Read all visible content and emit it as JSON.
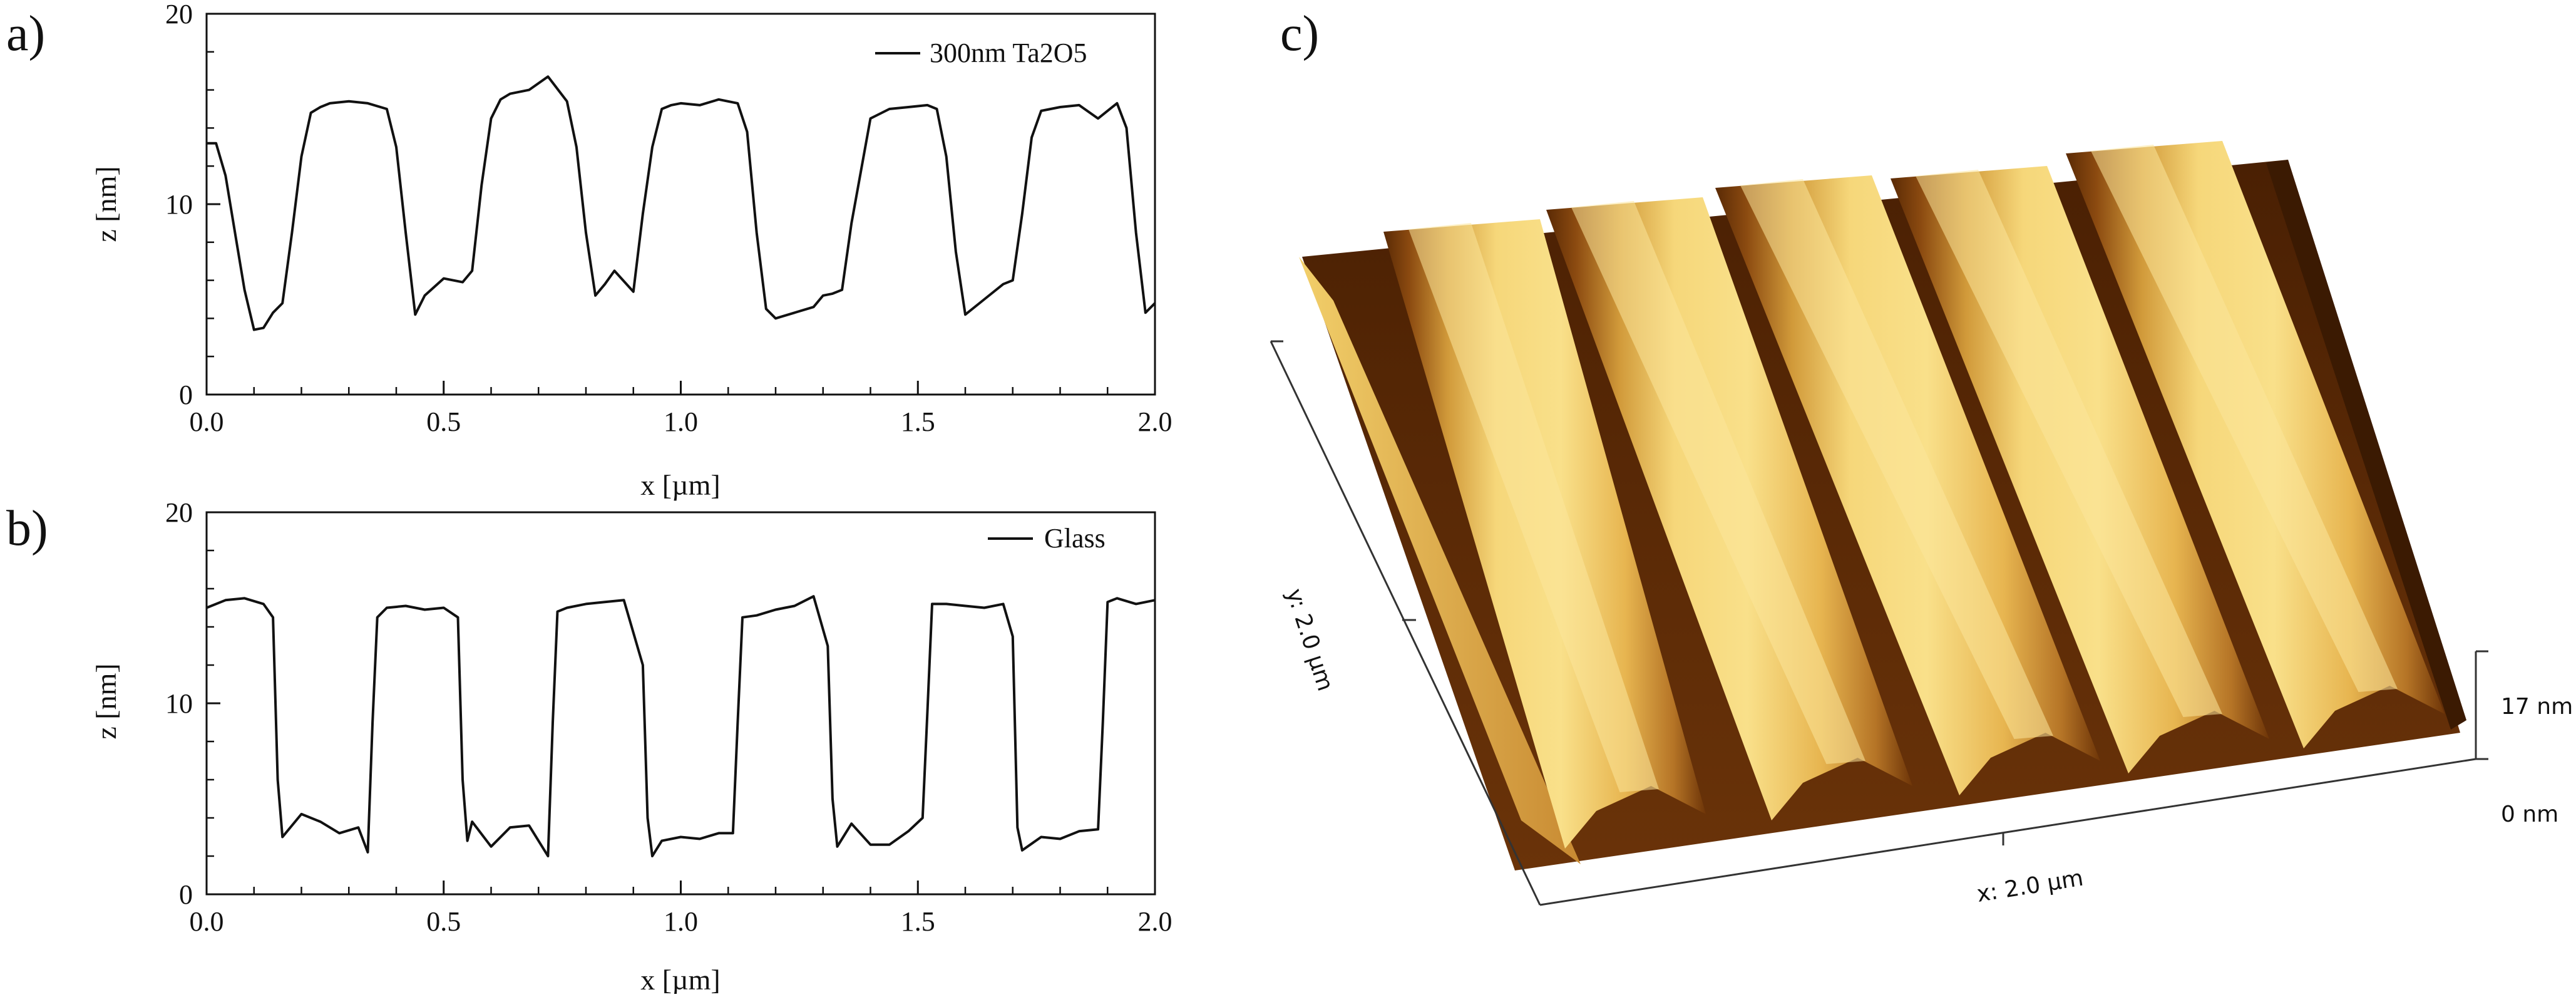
{
  "chart_data": [
    {
      "panel": "a)",
      "type": "line",
      "xlabel": "x [µm]",
      "ylabel": "z [nm]",
      "xlim": [
        0.0,
        2.0
      ],
      "ylim": [
        0,
        20
      ],
      "xticks": [
        "0.0",
        "0.5",
        "1.0",
        "1.5",
        "2.0"
      ],
      "yticks": [
        "0",
        "10",
        "20"
      ],
      "legend_position": "top-right",
      "series": [
        {
          "name": "300nm Ta2O5",
          "x": [
            0.0,
            0.02,
            0.04,
            0.06,
            0.08,
            0.1,
            0.12,
            0.14,
            0.16,
            0.18,
            0.2,
            0.22,
            0.24,
            0.26,
            0.3,
            0.34,
            0.38,
            0.4,
            0.42,
            0.44,
            0.46,
            0.5,
            0.54,
            0.56,
            0.58,
            0.6,
            0.62,
            0.64,
            0.68,
            0.72,
            0.76,
            0.78,
            0.8,
            0.82,
            0.84,
            0.86,
            0.9,
            0.92,
            0.94,
            0.96,
            0.98,
            1.0,
            1.04,
            1.08,
            1.12,
            1.14,
            1.16,
            1.18,
            1.2,
            1.24,
            1.28,
            1.3,
            1.32,
            1.34,
            1.36,
            1.4,
            1.44,
            1.48,
            1.52,
            1.54,
            1.56,
            1.58,
            1.6,
            1.64,
            1.68,
            1.7,
            1.72,
            1.74,
            1.76,
            1.8,
            1.84,
            1.88,
            1.92,
            1.94,
            1.96,
            1.98,
            2.0
          ],
          "y": [
            13.2,
            13.2,
            11.5,
            8.5,
            5.5,
            3.4,
            3.5,
            4.3,
            4.8,
            8.5,
            12.5,
            14.8,
            15.1,
            15.3,
            15.4,
            15.3,
            15.0,
            13.0,
            8.5,
            4.2,
            5.2,
            6.1,
            5.9,
            6.5,
            11.0,
            14.5,
            15.5,
            15.8,
            16.0,
            16.7,
            15.4,
            13.0,
            8.5,
            5.2,
            5.8,
            6.5,
            5.4,
            9.5,
            13.0,
            15.0,
            15.2,
            15.3,
            15.2,
            15.5,
            15.3,
            13.8,
            8.5,
            4.5,
            4.0,
            4.3,
            4.6,
            5.2,
            5.3,
            5.5,
            9.0,
            14.5,
            15.0,
            15.1,
            15.2,
            15.0,
            12.5,
            7.5,
            4.2,
            5.0,
            5.8,
            6.0,
            9.5,
            13.5,
            14.9,
            15.1,
            15.2,
            14.5,
            15.3,
            14.0,
            8.5,
            4.3,
            4.8
          ]
        }
      ]
    },
    {
      "panel": "b)",
      "type": "line",
      "xlabel": "x [µm]",
      "ylabel": "z [nm]",
      "xlim": [
        0.0,
        2.0
      ],
      "ylim": [
        0,
        20
      ],
      "xticks": [
        "0.0",
        "0.5",
        "1.0",
        "1.5",
        "2.0"
      ],
      "yticks": [
        "0",
        "10",
        "20"
      ],
      "legend_position": "top-right",
      "series": [
        {
          "name": "Glass",
          "x": [
            0.0,
            0.04,
            0.08,
            0.12,
            0.14,
            0.15,
            0.16,
            0.2,
            0.24,
            0.28,
            0.32,
            0.34,
            0.35,
            0.36,
            0.38,
            0.42,
            0.46,
            0.5,
            0.53,
            0.54,
            0.55,
            0.56,
            0.6,
            0.64,
            0.68,
            0.72,
            0.73,
            0.74,
            0.76,
            0.8,
            0.84,
            0.88,
            0.92,
            0.93,
            0.94,
            0.96,
            1.0,
            1.04,
            1.08,
            1.11,
            1.12,
            1.13,
            1.16,
            1.2,
            1.24,
            1.28,
            1.31,
            1.32,
            1.33,
            1.36,
            1.4,
            1.44,
            1.48,
            1.51,
            1.52,
            1.53,
            1.56,
            1.6,
            1.64,
            1.68,
            1.7,
            1.71,
            1.72,
            1.76,
            1.8,
            1.84,
            1.88,
            1.89,
            1.9,
            1.92,
            1.96,
            2.0
          ],
          "y": [
            15.0,
            15.4,
            15.5,
            15.2,
            14.5,
            6.0,
            3.0,
            4.2,
            3.8,
            3.2,
            3.5,
            2.2,
            9.0,
            14.5,
            15.0,
            15.1,
            14.9,
            15.0,
            14.5,
            6.0,
            2.8,
            3.8,
            2.5,
            3.5,
            3.6,
            2.0,
            9.0,
            14.8,
            15.0,
            15.2,
            15.3,
            15.4,
            12.0,
            4.0,
            2.0,
            2.8,
            3.0,
            2.9,
            3.2,
            3.2,
            9.0,
            14.5,
            14.6,
            14.9,
            15.1,
            15.6,
            13.0,
            5.0,
            2.5,
            3.7,
            2.6,
            2.6,
            3.3,
            4.0,
            9.5,
            15.2,
            15.2,
            15.1,
            15.0,
            15.2,
            13.5,
            3.5,
            2.3,
            3.0,
            2.9,
            3.3,
            3.4,
            9.0,
            15.3,
            15.5,
            15.2,
            15.4
          ]
        }
      ]
    }
  ],
  "afm": {
    "panel": "c)",
    "y_axis_label": "y: 2.0 µm",
    "x_axis_label": "x: 2.0 µm",
    "z_max_label": "17 nm",
    "z_min_label": "0 nm",
    "stripe_count": 5
  }
}
